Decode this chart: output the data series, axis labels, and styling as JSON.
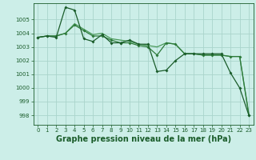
{
  "background_color": "#cceee8",
  "grid_color": "#aad4cc",
  "line_color_dark": "#1a5c2a",
  "line_color_mid": "#2d7a3a",
  "line_color_light": "#4a9a5a",
  "xlabel": "Graphe pression niveau de la mer (hPa)",
  "xlabel_fontsize": 7.0,
  "ylim": [
    997.3,
    1006.2
  ],
  "xlim": [
    -0.5,
    23.5
  ],
  "yticks": [
    998,
    999,
    1000,
    1001,
    1002,
    1003,
    1004,
    1005
  ],
  "xticks": [
    0,
    1,
    2,
    3,
    4,
    5,
    6,
    7,
    8,
    9,
    10,
    11,
    12,
    13,
    14,
    15,
    16,
    17,
    18,
    19,
    20,
    21,
    22,
    23
  ],
  "series1_x": [
    0,
    1,
    2,
    3,
    4,
    5,
    6,
    7,
    8,
    9,
    10,
    11,
    12,
    13,
    14,
    15,
    16,
    17,
    18,
    19,
    20,
    21,
    22,
    23
  ],
  "series1_y": [
    1003.7,
    1003.8,
    1003.7,
    1005.9,
    1005.7,
    1003.6,
    1003.4,
    1003.9,
    1003.3,
    1003.3,
    1003.5,
    1003.2,
    1003.2,
    1001.2,
    1001.3,
    1002.0,
    1002.5,
    1002.5,
    1002.5,
    1002.5,
    1002.5,
    1001.1,
    1000.0,
    998.0
  ],
  "series2_x": [
    0,
    1,
    2,
    3,
    4,
    5,
    6,
    7,
    8,
    9,
    10,
    11,
    12,
    13,
    14,
    15,
    16,
    17,
    18,
    19,
    20,
    21,
    22,
    23
  ],
  "series2_y": [
    1003.7,
    1003.8,
    1003.8,
    1004.0,
    1004.6,
    1004.2,
    1003.8,
    1003.8,
    1003.5,
    1003.3,
    1003.3,
    1003.1,
    1003.0,
    1002.4,
    1003.3,
    1003.2,
    1002.5,
    1002.5,
    1002.4,
    1002.4,
    1002.4,
    1002.3,
    1002.3,
    998.0
  ],
  "series3_x": [
    0,
    1,
    2,
    3,
    4,
    5,
    6,
    7,
    8,
    9,
    10,
    11,
    12,
    13,
    14,
    15,
    16,
    17,
    18,
    19,
    20,
    21,
    22,
    23
  ],
  "series3_y": [
    1003.7,
    1003.8,
    1003.8,
    1004.0,
    1004.7,
    1004.3,
    1003.9,
    1004.0,
    1003.6,
    1003.5,
    1003.4,
    1003.2,
    1003.1,
    1003.0,
    1003.3,
    1003.2,
    1002.5,
    1002.5,
    1002.4,
    1002.4,
    1002.4,
    1002.3,
    1002.3,
    998.1
  ]
}
